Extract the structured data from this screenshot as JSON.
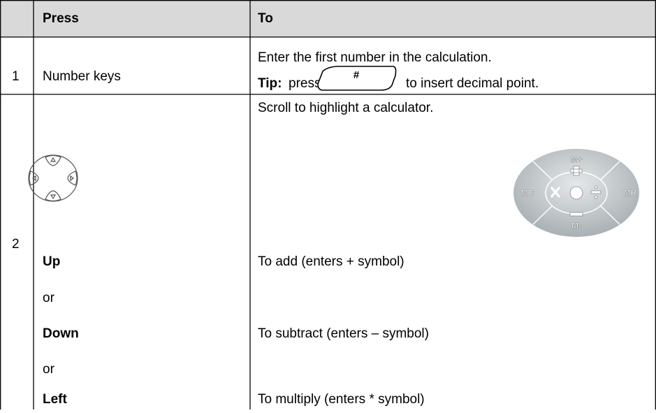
{
  "table": {
    "header": {
      "press": "Press",
      "to": "To"
    },
    "rows": [
      {
        "number": "1",
        "press": "Number keys",
        "to": "Enter the first number in the calculation.",
        "tip": {
          "label": "Tip:",
          "before": "press",
          "key": "#",
          "after": "to insert decimal point."
        }
      },
      {
        "number": "2",
        "to": "Scroll to highlight a calculator.",
        "calculator_labels": [
          "M+",
          "MC",
          "MR",
          "M-"
        ],
        "items": [
          {
            "press": "Up",
            "to": "To add (enters + symbol)"
          },
          {
            "press": "or"
          },
          {
            "press": "Down",
            "to": "To subtract (enters – symbol)"
          },
          {
            "press": "or"
          },
          {
            "press": "Left",
            "to": "To multiply (enters * symbol)"
          }
        ]
      }
    ]
  }
}
